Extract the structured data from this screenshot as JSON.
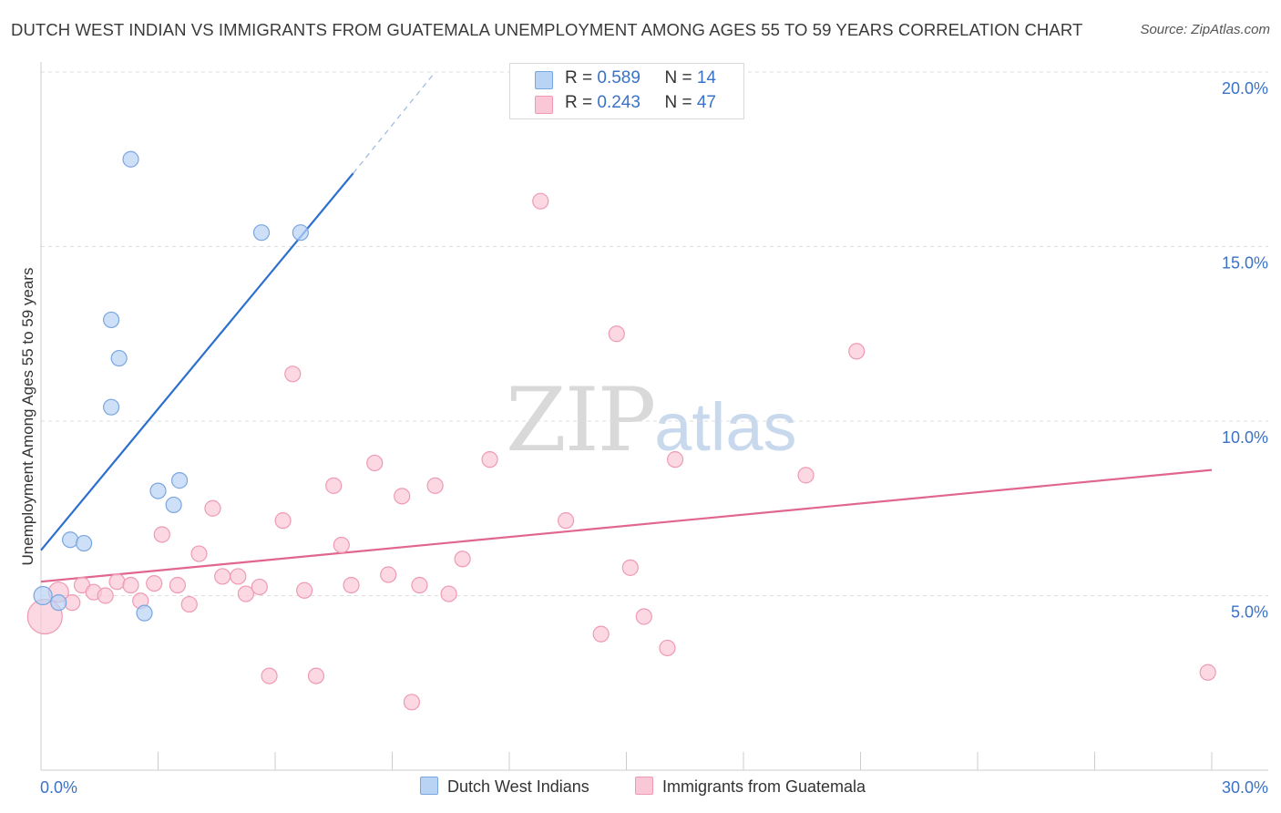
{
  "header": {
    "title": "DUTCH WEST INDIAN VS IMMIGRANTS FROM GUATEMALA UNEMPLOYMENT AMONG AGES 55 TO 59 YEARS CORRELATION CHART",
    "source": "Source: ZipAtlas.com"
  },
  "watermark": {
    "zip": "ZIP",
    "atlas": "atlas"
  },
  "legend_top": [
    {
      "r_label": "R = ",
      "r_value": "0.589",
      "n_label": "N = ",
      "n_value": "14"
    },
    {
      "r_label": "R = ",
      "r_value": "0.243",
      "n_label": "N = ",
      "n_value": "47"
    }
  ],
  "colors": {
    "blue_fill": "#b9d3f5",
    "blue_stroke": "#7aa6e0",
    "blue_line": "#2d6fcf",
    "pink_fill": "#f9c7d5",
    "pink_stroke": "#ef9ab4",
    "pink_line": "#e0668f",
    "axis_text": "#3a72c8",
    "grid": "#dddddd"
  },
  "chart_data": {
    "type": "scatter",
    "title": "DUTCH WEST INDIAN VS IMMIGRANTS FROM GUATEMALA UNEMPLOYMENT AMONG AGES 55 TO 59 YEARS CORRELATION CHART",
    "xlabel": "",
    "ylabel": "Unemployment Among Ages 55 to 59 years",
    "xlim": [
      0,
      30
    ],
    "ylim": [
      0,
      20
    ],
    "x_tick_labels": [
      {
        "value": 0,
        "label": "0.0%"
      },
      {
        "value": 30,
        "label": "30.0%"
      }
    ],
    "y_tick_labels": [
      {
        "value": 5,
        "label": "5.0%"
      },
      {
        "value": 10,
        "label": "10.0%"
      },
      {
        "value": 15,
        "label": "15.0%"
      },
      {
        "value": 20,
        "label": "20.0%"
      }
    ],
    "series": [
      {
        "name": "Dutch West Indians",
        "color": "#b9d3f5",
        "r": 0.589,
        "n": 14,
        "points": [
          {
            "x": 0.05,
            "y": 5.0
          },
          {
            "x": 0.45,
            "y": 4.8
          },
          {
            "x": 0.75,
            "y": 6.6
          },
          {
            "x": 1.1,
            "y": 6.5
          },
          {
            "x": 1.8,
            "y": 10.4
          },
          {
            "x": 1.8,
            "y": 12.9
          },
          {
            "x": 2.0,
            "y": 11.8
          },
          {
            "x": 2.3,
            "y": 17.5
          },
          {
            "x": 2.65,
            "y": 4.5
          },
          {
            "x": 3.0,
            "y": 8.0
          },
          {
            "x": 3.4,
            "y": 7.6
          },
          {
            "x": 3.55,
            "y": 8.3
          },
          {
            "x": 5.65,
            "y": 15.4
          },
          {
            "x": 6.65,
            "y": 15.4
          }
        ],
        "trendline": {
          "x0": 0,
          "y0": 6.3,
          "x1": 8.0,
          "y1": 17.1,
          "dash_x1": 10.1,
          "dash_y1": 20.0
        }
      },
      {
        "name": "Immigrants from Guatemala",
        "color": "#f9c7d5",
        "r": 0.243,
        "n": 47,
        "points": [
          {
            "x": 0.1,
            "y": 4.4
          },
          {
            "x": 0.45,
            "y": 5.1
          },
          {
            "x": 0.8,
            "y": 4.8
          },
          {
            "x": 1.05,
            "y": 5.3
          },
          {
            "x": 1.35,
            "y": 5.1
          },
          {
            "x": 1.65,
            "y": 5.0
          },
          {
            "x": 1.95,
            "y": 5.4
          },
          {
            "x": 2.3,
            "y": 5.3
          },
          {
            "x": 2.55,
            "y": 4.85
          },
          {
            "x": 2.9,
            "y": 5.35
          },
          {
            "x": 3.1,
            "y": 6.75
          },
          {
            "x": 3.5,
            "y": 5.3
          },
          {
            "x": 3.8,
            "y": 4.75
          },
          {
            "x": 4.05,
            "y": 6.2
          },
          {
            "x": 4.4,
            "y": 7.5
          },
          {
            "x": 4.65,
            "y": 5.55
          },
          {
            "x": 5.05,
            "y": 5.55
          },
          {
            "x": 5.25,
            "y": 5.05
          },
          {
            "x": 5.6,
            "y": 5.25
          },
          {
            "x": 5.85,
            "y": 2.7
          },
          {
            "x": 6.2,
            "y": 7.15
          },
          {
            "x": 6.45,
            "y": 11.35
          },
          {
            "x": 6.75,
            "y": 5.15
          },
          {
            "x": 7.05,
            "y": 2.7
          },
          {
            "x": 7.5,
            "y": 8.15
          },
          {
            "x": 7.7,
            "y": 6.45
          },
          {
            "x": 7.95,
            "y": 5.3
          },
          {
            "x": 8.55,
            "y": 8.8
          },
          {
            "x": 8.9,
            "y": 5.6
          },
          {
            "x": 9.25,
            "y": 7.85
          },
          {
            "x": 9.5,
            "y": 1.95
          },
          {
            "x": 9.7,
            "y": 5.3
          },
          {
            "x": 10.1,
            "y": 8.15
          },
          {
            "x": 10.45,
            "y": 5.05
          },
          {
            "x": 10.8,
            "y": 6.05
          },
          {
            "x": 11.5,
            "y": 8.9
          },
          {
            "x": 12.8,
            "y": 16.3
          },
          {
            "x": 13.45,
            "y": 7.15
          },
          {
            "x": 14.35,
            "y": 3.9
          },
          {
            "x": 14.75,
            "y": 12.5
          },
          {
            "x": 15.1,
            "y": 5.8
          },
          {
            "x": 15.45,
            "y": 4.4
          },
          {
            "x": 16.05,
            "y": 3.5
          },
          {
            "x": 16.25,
            "y": 8.9
          },
          {
            "x": 19.6,
            "y": 8.45
          },
          {
            "x": 20.9,
            "y": 12.0
          },
          {
            "x": 29.9,
            "y": 2.8
          }
        ],
        "trendline": {
          "x0": 0,
          "y0": 5.4,
          "x1": 30,
          "y1": 8.6
        }
      }
    ],
    "legend": [
      "Dutch West Indians",
      "Immigrants from Guatemala"
    ],
    "grid": true
  }
}
